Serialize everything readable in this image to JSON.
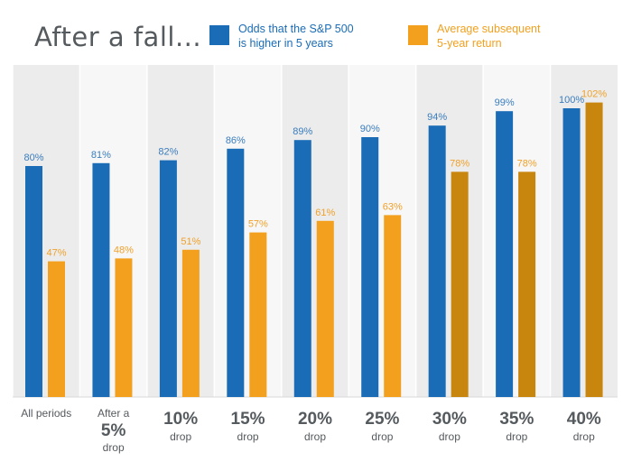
{
  "title": "After a fall...",
  "legend": [
    {
      "lines": [
        "Odds that the S&P 500",
        "is higher in 5 years"
      ],
      "color": "#1a6cb7"
    },
    {
      "lines": [
        "Average subsequent",
        "5-year return"
      ],
      "color": "#f2a01e"
    }
  ],
  "colors": {
    "blue": "#1a6cb7",
    "orange": "#f2a01e",
    "orange_dark": "#c8860f",
    "blue_label": "#3b7dbd",
    "orange_label": "#f0a12a",
    "band": "#ececec",
    "axis_text": "#555a5e"
  },
  "chart_data": {
    "type": "bar",
    "categories": [
      {
        "top": "",
        "main": "All periods",
        "bottom": ""
      },
      {
        "top": "After a",
        "main": "5%",
        "bottom": "drop"
      },
      {
        "top": "",
        "main": "10%",
        "bottom": "drop"
      },
      {
        "top": "",
        "main": "15%",
        "bottom": "drop"
      },
      {
        "top": "",
        "main": "20%",
        "bottom": "drop"
      },
      {
        "top": "",
        "main": "25%",
        "bottom": "drop"
      },
      {
        "top": "",
        "main": "30%",
        "bottom": "drop"
      },
      {
        "top": "",
        "main": "35%",
        "bottom": "drop"
      },
      {
        "top": "",
        "main": "40%",
        "bottom": "drop"
      }
    ],
    "series": [
      {
        "name": "Odds that the S&P 500 is higher in 5 years",
        "values": [
          80,
          81,
          82,
          86,
          89,
          90,
          94,
          99,
          100
        ],
        "labels": [
          "80%",
          "81%",
          "82%",
          "86%",
          "89%",
          "90%",
          "94%",
          "99%",
          "100%"
        ]
      },
      {
        "name": "Average subsequent 5-year return",
        "values": [
          47,
          48,
          51,
          57,
          61,
          63,
          78,
          78,
          102
        ],
        "labels": [
          "47%",
          "48%",
          "51%",
          "57%",
          "61%",
          "63%",
          "78%",
          "78%",
          "102%"
        ]
      }
    ],
    "ylim": [
      0,
      110
    ],
    "legend_position": "top"
  }
}
